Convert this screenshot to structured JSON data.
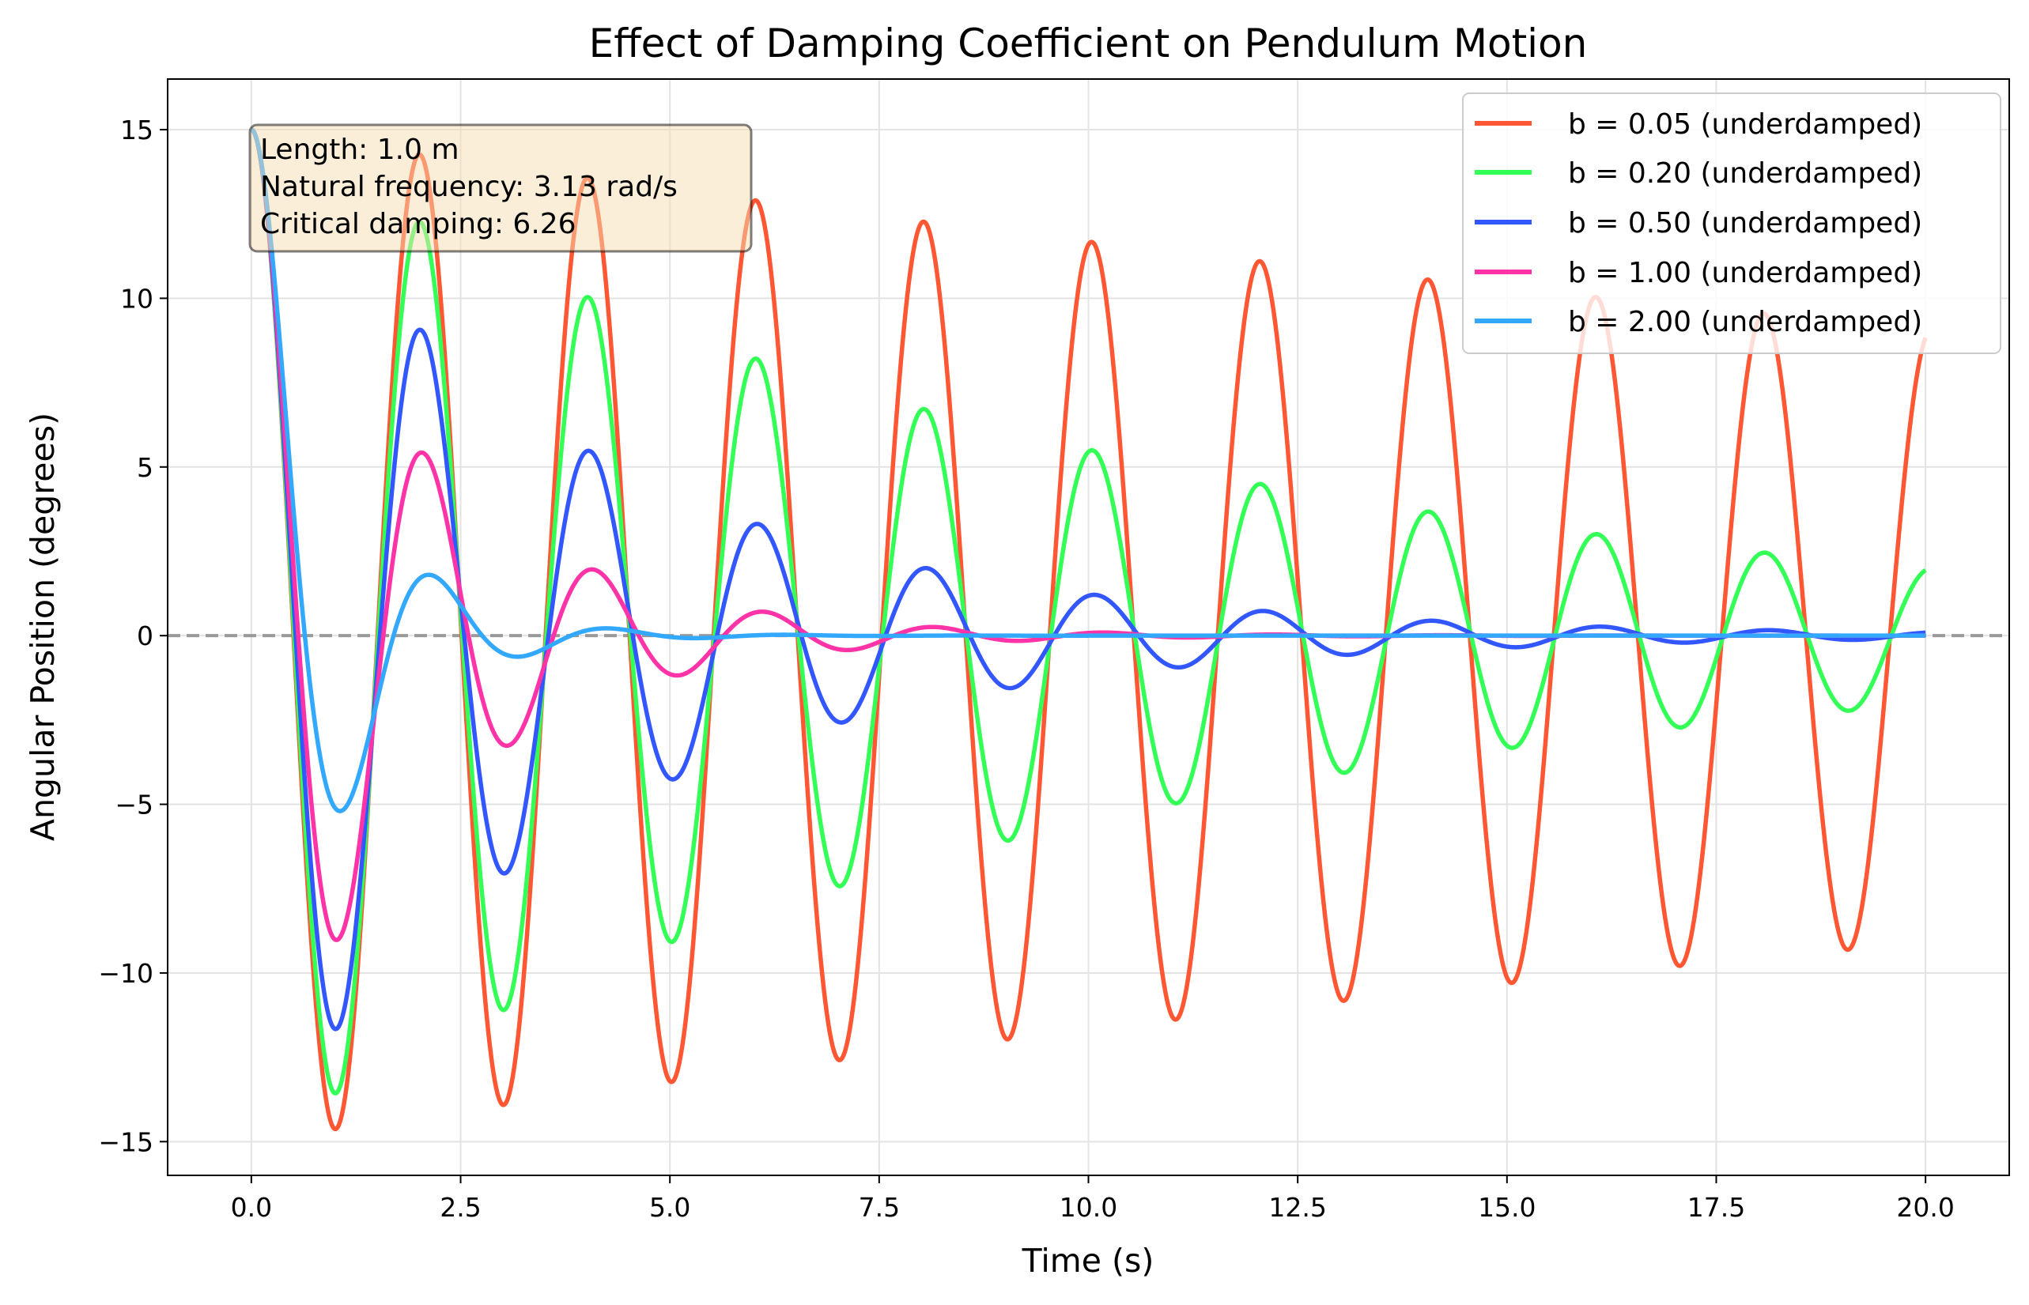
{
  "chart_data": {
    "type": "line",
    "title": "Effect of Damping Coefficient on Pendulum Motion",
    "xlabel": "Time (s)",
    "ylabel": "Angular Position (degrees)",
    "xlim": [
      -1.0,
      21.0
    ],
    "ylim": [
      -16.0,
      16.5
    ],
    "x_ticks": [
      0.0,
      2.5,
      5.0,
      7.5,
      10.0,
      12.5,
      15.0,
      17.5,
      20.0
    ],
    "x_tick_labels": [
      "0.0",
      "2.5",
      "5.0",
      "7.5",
      "10.0",
      "12.5",
      "15.0",
      "17.5",
      "20.0"
    ],
    "y_ticks": [
      -15,
      -10,
      -5,
      0,
      5,
      10,
      15
    ],
    "y_tick_labels": [
      "−15",
      "−10",
      "−5",
      "0",
      "5",
      "10",
      "15"
    ],
    "grid": true,
    "reference_line": {
      "y": 0,
      "style": "dashed",
      "color": "#999999"
    },
    "legend_position": "top-right",
    "annotation": {
      "lines": [
        "Length: 1.0 m",
        "Natural frequency: 3.13 rad/s",
        "Critical damping: 6.26"
      ]
    },
    "model": {
      "initial_angle_deg": 15,
      "natural_frequency": 3.13,
      "t_start": 0,
      "t_end": 20
    },
    "series": [
      {
        "name": "b = 0.05 (underdamped)",
        "b": 0.05,
        "color": "#ff5733"
      },
      {
        "name": "b = 0.20 (underdamped)",
        "b": 0.2,
        "color": "#33ff57"
      },
      {
        "name": "b = 0.50 (underdamped)",
        "b": 0.5,
        "color": "#3357ff"
      },
      {
        "name": "b = 1.00 (underdamped)",
        "b": 1.0,
        "color": "#ff33a8"
      },
      {
        "name": "b = 2.00 (underdamped)",
        "b": 2.0,
        "color": "#33a8ff"
      }
    ]
  }
}
